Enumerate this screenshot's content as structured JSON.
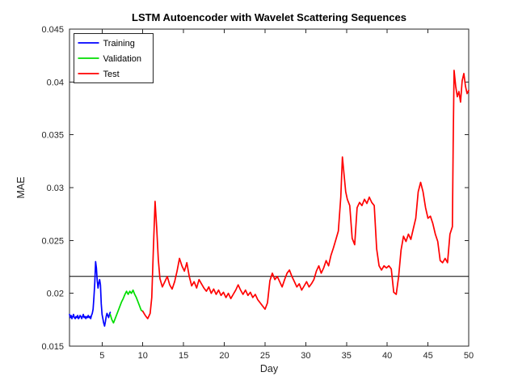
{
  "figure": {
    "window_title": ""
  },
  "chart_data": {
    "type": "line",
    "title": "LSTM Autoencoder with Wavelet Scattering Sequences",
    "xlabel": "Day",
    "ylabel": "MAE",
    "xlim": [
      1,
      50
    ],
    "ylim": [
      0.015,
      0.045
    ],
    "xticks": [
      5,
      10,
      15,
      20,
      25,
      30,
      35,
      40,
      45,
      50
    ],
    "xtick_labels": [
      "5",
      "10",
      "15",
      "20",
      "25",
      "30",
      "35",
      "40",
      "45",
      "50"
    ],
    "yticks": [
      0.015,
      0.02,
      0.025,
      0.03,
      0.035,
      0.04,
      0.045
    ],
    "ytick_labels": [
      "0.015",
      "0.02",
      "0.025",
      "0.03",
      "0.035",
      "0.04",
      "0.045"
    ],
    "grid": false,
    "box": true,
    "legend_position": "top-left",
    "axis_color": "#262626",
    "threshold": {
      "value": 0.0216,
      "color": "#000000"
    },
    "series": [
      {
        "name": "Training",
        "color": "#0000ff",
        "points": [
          [
            1.0,
            0.018
          ],
          [
            1.1,
            0.0177
          ],
          [
            1.2,
            0.0179
          ],
          [
            1.3,
            0.0176
          ],
          [
            1.4,
            0.0178
          ],
          [
            1.5,
            0.018
          ],
          [
            1.6,
            0.0177
          ],
          [
            1.7,
            0.0176
          ],
          [
            1.8,
            0.0178
          ],
          [
            1.9,
            0.0177
          ],
          [
            2.0,
            0.0179
          ],
          [
            2.1,
            0.0176
          ],
          [
            2.2,
            0.0177
          ],
          [
            2.3,
            0.0179
          ],
          [
            2.4,
            0.0178
          ],
          [
            2.5,
            0.0176
          ],
          [
            2.6,
            0.0178
          ],
          [
            2.7,
            0.018
          ],
          [
            2.8,
            0.0177
          ],
          [
            2.9,
            0.0178
          ],
          [
            3.0,
            0.0176
          ],
          [
            3.1,
            0.0178
          ],
          [
            3.2,
            0.0177
          ],
          [
            3.3,
            0.0179
          ],
          [
            3.4,
            0.0177
          ],
          [
            3.5,
            0.0178
          ],
          [
            3.6,
            0.0176
          ],
          [
            3.7,
            0.0179
          ],
          [
            3.8,
            0.0181
          ],
          [
            3.9,
            0.0185
          ],
          [
            4.0,
            0.0196
          ],
          [
            4.1,
            0.021
          ],
          [
            4.2,
            0.023
          ],
          [
            4.3,
            0.0224
          ],
          [
            4.4,
            0.0212
          ],
          [
            4.5,
            0.0205
          ],
          [
            4.6,
            0.021
          ],
          [
            4.7,
            0.0213
          ],
          [
            4.8,
            0.0208
          ],
          [
            4.9,
            0.019
          ],
          [
            5.0,
            0.018
          ],
          [
            5.1,
            0.0176
          ],
          [
            5.2,
            0.0172
          ],
          [
            5.3,
            0.0169
          ],
          [
            5.4,
            0.0173
          ],
          [
            5.5,
            0.0178
          ],
          [
            5.6,
            0.0181
          ],
          [
            5.7,
            0.0179
          ],
          [
            5.8,
            0.0177
          ],
          [
            5.9,
            0.018
          ],
          [
            6.0,
            0.0182
          ]
        ]
      },
      {
        "name": "Validation",
        "color": "#00dd00",
        "points": [
          [
            6.0,
            0.018
          ],
          [
            6.2,
            0.0175
          ],
          [
            6.4,
            0.0172
          ],
          [
            6.6,
            0.0176
          ],
          [
            6.8,
            0.018
          ],
          [
            7.0,
            0.0184
          ],
          [
            7.2,
            0.0188
          ],
          [
            7.4,
            0.0192
          ],
          [
            7.6,
            0.0195
          ],
          [
            7.8,
            0.0199
          ],
          [
            8.0,
            0.0202
          ],
          [
            8.2,
            0.0199
          ],
          [
            8.4,
            0.0202
          ],
          [
            8.6,
            0.02
          ],
          [
            8.8,
            0.0203
          ],
          [
            9.0,
            0.0199
          ],
          [
            9.2,
            0.0196
          ],
          [
            9.4,
            0.0192
          ],
          [
            9.6,
            0.0188
          ],
          [
            9.8,
            0.0184
          ],
          [
            10.0,
            0.0183
          ]
        ]
      },
      {
        "name": "Test",
        "color": "#ff0000",
        "points": [
          [
            10.0,
            0.0183
          ],
          [
            10.3,
            0.0179
          ],
          [
            10.6,
            0.0176
          ],
          [
            10.9,
            0.0181
          ],
          [
            11.1,
            0.0196
          ],
          [
            11.3,
            0.0242
          ],
          [
            11.5,
            0.0287
          ],
          [
            11.7,
            0.0262
          ],
          [
            11.9,
            0.0232
          ],
          [
            12.1,
            0.0214
          ],
          [
            12.4,
            0.0206
          ],
          [
            12.7,
            0.0211
          ],
          [
            13.0,
            0.0216
          ],
          [
            13.3,
            0.0208
          ],
          [
            13.6,
            0.0204
          ],
          [
            13.9,
            0.0211
          ],
          [
            14.2,
            0.0221
          ],
          [
            14.5,
            0.0233
          ],
          [
            14.8,
            0.0226
          ],
          [
            15.1,
            0.0221
          ],
          [
            15.4,
            0.0229
          ],
          [
            15.7,
            0.0216
          ],
          [
            16.0,
            0.0207
          ],
          [
            16.3,
            0.0211
          ],
          [
            16.6,
            0.0205
          ],
          [
            16.9,
            0.0213
          ],
          [
            17.2,
            0.0209
          ],
          [
            17.5,
            0.0205
          ],
          [
            17.8,
            0.0202
          ],
          [
            18.1,
            0.0206
          ],
          [
            18.4,
            0.02
          ],
          [
            18.7,
            0.0204
          ],
          [
            19.0,
            0.0199
          ],
          [
            19.3,
            0.0203
          ],
          [
            19.6,
            0.0198
          ],
          [
            19.9,
            0.0201
          ],
          [
            20.2,
            0.0196
          ],
          [
            20.5,
            0.02
          ],
          [
            20.8,
            0.0195
          ],
          [
            21.1,
            0.0199
          ],
          [
            21.4,
            0.0203
          ],
          [
            21.7,
            0.0208
          ],
          [
            22.0,
            0.0203
          ],
          [
            22.3,
            0.0199
          ],
          [
            22.6,
            0.0203
          ],
          [
            22.9,
            0.0198
          ],
          [
            23.2,
            0.0201
          ],
          [
            23.5,
            0.0196
          ],
          [
            23.8,
            0.0199
          ],
          [
            24.1,
            0.0194
          ],
          [
            24.4,
            0.0191
          ],
          [
            24.7,
            0.0188
          ],
          [
            25.0,
            0.0185
          ],
          [
            25.3,
            0.0191
          ],
          [
            25.6,
            0.0212
          ],
          [
            25.9,
            0.0219
          ],
          [
            26.2,
            0.0213
          ],
          [
            26.5,
            0.0216
          ],
          [
            26.8,
            0.0211
          ],
          [
            27.1,
            0.0206
          ],
          [
            27.4,
            0.0213
          ],
          [
            27.7,
            0.0219
          ],
          [
            28.0,
            0.0222
          ],
          [
            28.3,
            0.0216
          ],
          [
            28.6,
            0.0211
          ],
          [
            28.9,
            0.0206
          ],
          [
            29.2,
            0.0209
          ],
          [
            29.5,
            0.0203
          ],
          [
            29.8,
            0.0207
          ],
          [
            30.1,
            0.0211
          ],
          [
            30.4,
            0.0206
          ],
          [
            30.7,
            0.0209
          ],
          [
            31.0,
            0.0213
          ],
          [
            31.3,
            0.0221
          ],
          [
            31.6,
            0.0226
          ],
          [
            31.9,
            0.0219
          ],
          [
            32.2,
            0.0224
          ],
          [
            32.5,
            0.0231
          ],
          [
            32.8,
            0.0226
          ],
          [
            33.1,
            0.0236
          ],
          [
            33.4,
            0.0243
          ],
          [
            33.7,
            0.0251
          ],
          [
            34.0,
            0.0259
          ],
          [
            34.3,
            0.0291
          ],
          [
            34.5,
            0.0329
          ],
          [
            34.7,
            0.0312
          ],
          [
            34.9,
            0.0296
          ],
          [
            35.1,
            0.0289
          ],
          [
            35.4,
            0.0283
          ],
          [
            35.7,
            0.0252
          ],
          [
            36.0,
            0.0246
          ],
          [
            36.3,
            0.0281
          ],
          [
            36.6,
            0.0286
          ],
          [
            36.9,
            0.0283
          ],
          [
            37.2,
            0.0289
          ],
          [
            37.5,
            0.0285
          ],
          [
            37.8,
            0.0291
          ],
          [
            38.1,
            0.0286
          ],
          [
            38.4,
            0.0283
          ],
          [
            38.7,
            0.0242
          ],
          [
            39.0,
            0.0226
          ],
          [
            39.3,
            0.0222
          ],
          [
            39.6,
            0.0226
          ],
          [
            39.9,
            0.0224
          ],
          [
            40.2,
            0.0226
          ],
          [
            40.5,
            0.0223
          ],
          [
            40.8,
            0.0201
          ],
          [
            41.1,
            0.0199
          ],
          [
            41.4,
            0.0216
          ],
          [
            41.7,
            0.0241
          ],
          [
            42.0,
            0.0254
          ],
          [
            42.3,
            0.0249
          ],
          [
            42.6,
            0.0256
          ],
          [
            42.9,
            0.0251
          ],
          [
            43.2,
            0.0261
          ],
          [
            43.5,
            0.0271
          ],
          [
            43.8,
            0.0296
          ],
          [
            44.1,
            0.0305
          ],
          [
            44.4,
            0.0296
          ],
          [
            44.7,
            0.0281
          ],
          [
            45.0,
            0.0271
          ],
          [
            45.3,
            0.0273
          ],
          [
            45.6,
            0.0266
          ],
          [
            45.9,
            0.0256
          ],
          [
            46.2,
            0.0249
          ],
          [
            46.5,
            0.0231
          ],
          [
            46.8,
            0.0229
          ],
          [
            47.1,
            0.0233
          ],
          [
            47.4,
            0.0229
          ],
          [
            47.7,
            0.0256
          ],
          [
            48.0,
            0.0263
          ],
          [
            48.1,
            0.0342
          ],
          [
            48.2,
            0.0411
          ],
          [
            48.4,
            0.0396
          ],
          [
            48.6,
            0.0386
          ],
          [
            48.8,
            0.0391
          ],
          [
            49.0,
            0.0381
          ],
          [
            49.2,
            0.0401
          ],
          [
            49.4,
            0.0408
          ],
          [
            49.6,
            0.0396
          ],
          [
            49.8,
            0.0389
          ],
          [
            50.0,
            0.0392
          ]
        ]
      }
    ]
  }
}
